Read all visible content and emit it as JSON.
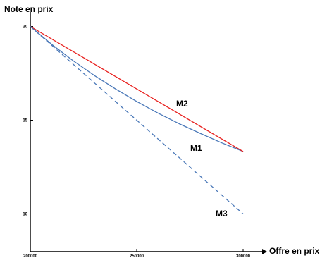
{
  "chart_data": {
    "type": "line",
    "xlabel": "Offre en prix",
    "ylabel": "Note en prix",
    "xlim": [
      200000,
      310000
    ],
    "ylim": [
      8,
      20.3
    ],
    "x_ticks": [
      200000,
      250000,
      300000
    ],
    "x_tick_labels": [
      "200000",
      "250000",
      "300000"
    ],
    "y_ticks": [
      10,
      15,
      20
    ],
    "y_tick_labels": [
      "10",
      "15",
      "20"
    ],
    "grid": false,
    "series": [
      {
        "name": "M1",
        "color": "#4a78b8",
        "dash": "solid",
        "x": [
          200000,
          210000,
          220000,
          230000,
          240000,
          250000,
          260000,
          270000,
          280000,
          290000,
          300000
        ],
        "y": [
          20.0,
          19.05,
          18.18,
          17.39,
          16.67,
          16.0,
          15.38,
          14.81,
          14.29,
          13.79,
          13.33
        ]
      },
      {
        "name": "M2",
        "color": "#e8201e",
        "dash": "solid",
        "x": [
          200000,
          300000
        ],
        "y": [
          20.0,
          13.33
        ]
      },
      {
        "name": "M3",
        "color": "#4a78b8",
        "dash": "dashed",
        "x": [
          200000,
          300000
        ],
        "y": [
          20.0,
          10.0
        ]
      }
    ]
  }
}
